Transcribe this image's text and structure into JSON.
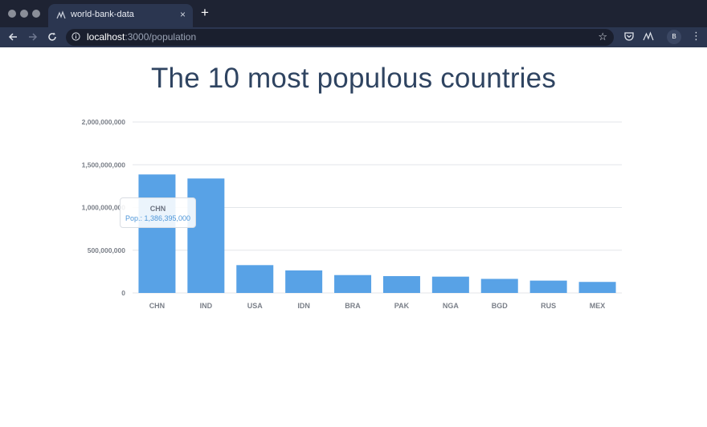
{
  "browser": {
    "tab_title": "world-bank-data",
    "url_host": "localhost",
    "url_path": ":3000/population",
    "avatar_letter": "B",
    "close_glyph": "×",
    "newtab_glyph": "+"
  },
  "page": {
    "title": "The 10 most populous countries"
  },
  "tooltip": {
    "title": "CHN",
    "value_text": "Pop.: 1,386,395,000"
  },
  "chart_data": {
    "type": "bar",
    "categories": [
      "CHN",
      "IND",
      "USA",
      "IDN",
      "BRA",
      "PAK",
      "NGA",
      "BGD",
      "RUS",
      "MEX"
    ],
    "values": [
      1386395000,
      1339180000,
      325719000,
      263991000,
      209288000,
      197016000,
      190886000,
      164670000,
      144496000,
      129163000
    ],
    "ylim": [
      0,
      2000000000
    ],
    "yticks": [
      0,
      500000000,
      1000000000,
      1500000000,
      2000000000
    ],
    "ytick_labels": [
      "0",
      "500,000,000",
      "1,000,000,000",
      "1,500,000,000",
      "2,000,000,000"
    ],
    "bar_color": "#58a2e6",
    "grid": true
  }
}
